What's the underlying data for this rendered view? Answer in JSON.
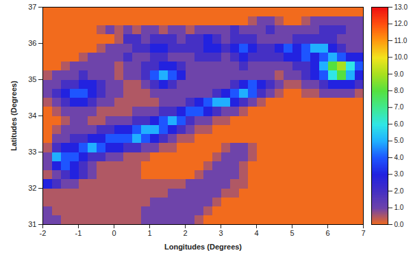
{
  "chart_data": {
    "type": "heatmap",
    "xlabel": "Longitudes (Degrees)",
    "ylabel": "Latitudes (Degrees)",
    "xlim": [
      -2,
      7
    ],
    "ylim": [
      31,
      37
    ],
    "xticks": [
      -2,
      -1,
      0,
      1,
      2,
      3,
      4,
      5,
      6,
      7
    ],
    "yticks": [
      31,
      32,
      33,
      34,
      35,
      36,
      37
    ],
    "cells": [
      [
        0,
        0,
        0,
        0,
        0,
        0,
        0,
        0,
        0,
        0,
        0,
        0,
        0,
        0,
        0,
        0,
        0,
        0,
        0,
        0,
        0,
        0,
        0,
        0,
        0,
        0,
        0,
        0,
        0,
        0,
        0,
        0,
        0,
        0,
        0,
        0
      ],
      [
        0,
        0,
        0,
        0,
        0,
        0,
        0,
        0,
        0,
        0,
        0,
        0,
        0,
        0,
        0,
        0,
        0,
        0,
        0,
        0,
        0,
        0,
        0,
        0.5,
        1,
        1,
        0.5,
        0,
        0,
        0.5,
        1,
        1,
        1,
        1,
        1,
        1
      ],
      [
        0,
        0,
        0,
        0,
        0,
        0,
        0.5,
        1,
        0.5,
        1,
        0.5,
        1,
        1,
        0.5,
        1,
        1,
        0.5,
        1,
        1,
        1,
        1,
        2,
        1,
        1,
        1,
        2,
        1,
        1,
        1,
        1,
        1,
        2,
        2,
        2,
        1,
        1
      ],
      [
        0,
        0,
        0,
        0,
        0,
        0,
        0,
        0,
        0.5,
        2,
        2,
        1,
        2,
        2,
        2,
        1,
        2,
        2,
        3,
        2,
        1,
        2,
        2,
        2,
        1,
        1,
        1,
        1,
        2,
        2,
        2,
        2,
        2,
        1,
        1,
        1
      ],
      [
        0,
        0,
        0,
        0,
        0,
        0,
        0.5,
        1,
        1,
        1,
        2,
        2,
        3,
        3,
        2,
        2,
        2,
        2,
        3,
        3,
        2,
        3,
        4,
        3,
        2,
        2,
        3,
        4,
        3,
        4,
        5,
        5,
        3,
        2,
        1,
        1
      ],
      [
        0,
        0,
        0,
        0,
        0.5,
        1,
        1,
        1,
        1,
        2,
        1,
        1,
        2,
        2,
        1,
        1,
        1,
        2,
        2,
        2,
        1,
        2,
        3,
        2,
        2,
        2,
        2,
        3,
        3,
        4,
        3,
        4,
        5,
        4,
        3,
        3
      ],
      [
        0,
        0,
        0.5,
        1,
        1,
        1,
        1,
        1,
        0.5,
        1,
        1,
        2,
        2,
        3,
        3,
        2,
        1,
        1,
        1,
        1,
        1,
        1,
        2,
        1,
        1,
        1,
        1,
        1,
        2,
        2,
        3,
        5,
        8,
        9,
        6,
        4
      ],
      [
        0.5,
        1,
        1,
        1,
        2,
        1,
        1,
        1,
        0.5,
        1,
        1,
        2,
        4,
        5,
        4,
        3,
        1,
        1,
        1,
        1,
        1,
        1,
        1,
        1,
        1,
        1,
        0.5,
        1,
        1,
        2,
        3,
        4,
        6,
        8,
        5,
        3
      ],
      [
        1,
        1,
        2,
        2,
        3,
        3,
        2,
        1,
        1,
        0.5,
        0.5,
        1,
        2,
        3,
        2,
        1,
        1,
        1,
        1,
        1,
        1,
        2,
        3,
        4,
        3,
        2,
        1,
        0.5,
        0.5,
        1,
        1,
        2,
        3,
        3,
        3,
        2
      ],
      [
        1,
        2,
        3,
        4,
        4,
        3,
        2,
        1,
        1,
        0.5,
        0.5,
        0.5,
        1,
        1,
        1,
        1,
        1,
        1,
        1,
        2,
        3,
        4,
        5,
        4,
        2,
        1,
        0.5,
        0,
        0,
        0.5,
        0.5,
        1,
        1,
        1,
        1,
        0.5
      ],
      [
        0.5,
        1,
        2,
        3,
        3,
        2,
        1,
        1,
        0.5,
        0.5,
        0.5,
        0.5,
        0.5,
        1,
        1,
        1,
        2,
        3,
        4,
        5,
        5,
        3,
        2,
        1,
        0.5,
        0,
        0,
        0,
        0,
        0,
        0,
        0,
        0,
        0,
        0,
        0
      ],
      [
        0,
        0.5,
        1,
        1,
        1,
        1,
        0.5,
        0.5,
        0.5,
        0.5,
        1,
        1,
        1,
        2,
        2,
        3,
        4,
        4,
        3,
        2,
        1,
        1,
        0.5,
        0,
        0,
        0,
        0,
        0,
        0,
        0,
        0,
        0,
        0,
        0,
        0,
        0
      ],
      [
        0,
        0,
        0.5,
        1,
        1,
        0.5,
        0.5,
        1,
        1,
        1,
        2,
        2,
        3,
        4,
        5,
        4,
        2,
        1,
        1,
        0.5,
        0.5,
        0,
        0,
        0,
        0,
        0,
        0,
        0,
        0,
        0,
        0,
        0,
        0,
        0,
        0,
        0
      ],
      [
        0,
        0.5,
        1,
        1,
        1,
        1,
        2,
        2,
        3,
        3,
        4,
        5,
        5,
        4,
        3,
        2,
        1,
        0.5,
        0.5,
        0,
        0,
        0,
        0,
        0,
        0,
        0,
        0,
        0,
        0,
        0,
        0,
        0,
        0,
        0,
        0,
        0
      ],
      [
        0,
        1,
        1,
        2,
        2,
        3,
        3,
        4,
        4,
        4,
        5,
        4,
        3,
        2,
        1,
        0.5,
        0.5,
        0,
        0,
        0,
        0,
        0,
        0,
        0,
        0,
        0,
        0,
        0,
        0,
        0,
        0,
        0,
        0,
        0,
        0,
        0
      ],
      [
        0.5,
        2,
        3,
        3,
        4,
        5,
        4,
        3,
        3,
        2,
        2,
        1,
        1,
        0.5,
        0.5,
        0,
        0,
        0,
        0,
        0,
        0.5,
        1,
        1,
        0.5,
        0,
        0,
        0,
        0,
        0,
        0,
        0,
        0,
        0,
        0,
        0,
        0
      ],
      [
        1,
        5,
        4,
        4,
        3,
        2,
        2,
        1,
        1,
        0.5,
        0.5,
        0.5,
        0,
        0,
        0,
        0,
        0,
        0,
        0,
        0.5,
        1,
        1,
        1,
        0.5,
        0,
        0,
        0,
        0,
        0,
        0,
        0,
        0,
        0,
        0,
        0,
        0
      ],
      [
        1,
        3,
        4,
        3,
        2,
        1,
        0.5,
        0.5,
        0.5,
        0.5,
        0.5,
        0,
        0,
        0,
        0,
        0,
        0,
        0,
        0.5,
        1,
        1,
        1,
        0.5,
        0,
        0,
        0,
        0,
        0,
        0,
        0,
        0,
        0,
        0,
        0,
        0,
        0
      ],
      [
        0.5,
        1,
        2,
        3,
        2,
        1,
        0.5,
        0.5,
        0.5,
        0.5,
        0.5,
        0,
        0,
        0,
        0,
        0,
        0,
        0.5,
        1,
        1,
        1,
        1,
        0.5,
        0,
        0,
        0,
        0,
        0,
        0,
        0,
        0,
        0,
        0,
        0,
        0,
        0
      ],
      [
        3,
        2,
        1,
        1,
        0.5,
        0.5,
        0.5,
        0.5,
        0.5,
        0.5,
        0.5,
        0.5,
        0.5,
        0.5,
        0.5,
        0.5,
        1,
        1,
        1,
        1,
        1,
        0.5,
        0.5,
        0,
        0,
        0,
        0,
        0,
        0,
        0,
        0,
        0,
        0,
        0,
        0,
        0
      ],
      [
        0.5,
        0.5,
        0.5,
        0.5,
        0.5,
        0.5,
        0.5,
        0.5,
        0.5,
        0.5,
        0.5,
        0.5,
        0.5,
        0.5,
        1,
        1,
        1,
        1,
        1,
        1,
        0.5,
        0.5,
        0,
        0,
        0,
        0,
        0,
        0,
        0,
        0,
        0,
        0,
        0,
        0,
        0,
        0
      ],
      [
        0.5,
        0.5,
        0.5,
        0.5,
        0.5,
        0.5,
        0.5,
        0.5,
        0.5,
        0.5,
        0.5,
        0.5,
        1,
        1,
        1,
        1,
        1,
        1,
        1,
        0.5,
        0,
        0,
        0,
        0,
        0,
        0,
        0,
        0,
        0,
        0,
        0,
        0,
        0,
        0,
        0,
        0
      ],
      [
        1,
        0.5,
        0.5,
        0.5,
        0.5,
        0.5,
        0.5,
        0.5,
        0.5,
        0.5,
        0.5,
        1,
        1,
        1,
        1,
        1,
        1,
        1,
        0.5,
        0,
        0,
        0,
        0,
        0,
        0,
        0,
        0,
        0,
        0,
        0,
        0,
        0,
        0,
        0,
        0,
        0
      ],
      [
        1,
        1,
        0.5,
        0.5,
        0.5,
        0.5,
        0.5,
        0.5,
        0.5,
        0.5,
        0.5,
        1,
        1,
        1,
        1,
        1,
        1,
        0.5,
        0,
        0,
        0,
        0,
        0,
        0,
        0,
        0,
        0,
        0,
        0,
        0,
        0,
        0,
        0,
        0,
        0,
        0
      ]
    ],
    "colorbar": {
      "range": [
        0,
        13
      ],
      "ticks": [
        {
          "value": 0,
          "label": "0.0"
        },
        {
          "value": 1,
          "label": "1.0"
        },
        {
          "value": 2,
          "label": "2.0"
        },
        {
          "value": 3,
          "label": "3.0"
        },
        {
          "value": 4,
          "label": "4.0"
        },
        {
          "value": 5,
          "label": "5.0"
        },
        {
          "value": 6,
          "label": "6.0"
        },
        {
          "value": 7,
          "label": "7.0"
        },
        {
          "value": 8,
          "label": "8.0"
        },
        {
          "value": 9,
          "label": "9.0"
        },
        {
          "value": 10,
          "label": "10.0"
        },
        {
          "value": 11,
          "label": "11.0"
        },
        {
          "value": 12,
          "label": "12.0"
        },
        {
          "value": 13,
          "label": "13.0"
        }
      ]
    }
  }
}
